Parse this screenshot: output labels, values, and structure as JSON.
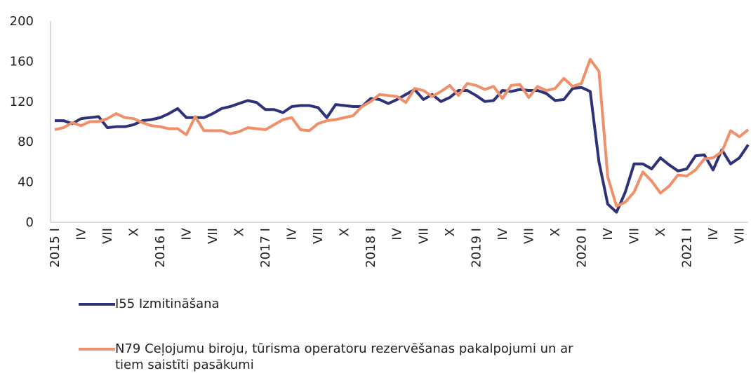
{
  "chart_data": {
    "type": "line",
    "categories": [
      "2015 I",
      null,
      null,
      "IV",
      null,
      null,
      "VII",
      null,
      null,
      "X",
      null,
      null,
      "2016 I",
      null,
      null,
      "IV",
      null,
      null,
      "VII",
      null,
      null,
      "X",
      null,
      null,
      "2017 I",
      null,
      null,
      "IV",
      null,
      null,
      "VII",
      null,
      null,
      "X",
      null,
      null,
      "2018 I",
      null,
      null,
      "IV",
      null,
      null,
      "VII",
      null,
      null,
      "X",
      null,
      null,
      "2019 I",
      null,
      null,
      "IV",
      null,
      null,
      "VII",
      null,
      null,
      "X",
      null,
      null,
      "2020 I",
      null,
      null,
      "IV",
      null,
      null,
      "VII",
      null,
      null,
      "X",
      null,
      null,
      "2021 I",
      null,
      null,
      "IV",
      null,
      null,
      "VII",
      null
    ],
    "series": [
      {
        "name": "I55 Izmitināšana",
        "color": "#2e3278",
        "values": [
          101,
          101,
          98,
          103,
          104,
          105,
          94,
          95,
          95,
          97,
          101,
          102,
          104,
          108,
          113,
          104,
          104,
          104,
          108,
          113,
          115,
          118,
          121,
          119,
          112,
          112,
          109,
          115,
          116,
          116,
          114,
          104,
          117,
          116,
          115,
          115,
          123,
          122,
          118,
          122,
          127,
          132,
          122,
          127,
          120,
          124,
          131,
          131,
          126,
          120,
          121,
          131,
          130,
          132,
          131,
          131,
          128,
          121,
          122,
          133,
          134,
          130,
          60,
          18,
          10,
          30,
          58,
          58,
          53,
          64,
          57,
          51,
          53,
          66,
          67,
          52,
          72,
          58,
          64,
          77
        ]
      },
      {
        "name": "N79 Ceļojumu biroju, tūrisma operatoru rezervēšanas pakalpojumi un ar tiem saistīti pasākumi",
        "color": "#f0906a",
        "values": [
          92,
          94,
          99,
          96,
          100,
          100,
          103,
          108,
          104,
          103,
          99,
          96,
          95,
          93,
          93,
          87,
          105,
          91,
          91,
          91,
          88,
          90,
          94,
          93,
          92,
          97,
          102,
          104,
          92,
          91,
          98,
          101,
          102,
          104,
          106,
          115,
          120,
          127,
          126,
          125,
          119,
          133,
          131,
          125,
          130,
          136,
          126,
          138,
          136,
          132,
          135,
          123,
          136,
          137,
          124,
          135,
          131,
          133,
          143,
          135,
          138,
          162,
          150,
          45,
          16,
          20,
          30,
          50,
          41,
          29,
          36,
          47,
          46,
          52,
          63,
          64,
          70,
          91,
          85,
          92
        ]
      }
    ],
    "ylim": [
      0,
      200
    ],
    "yticks": [
      0,
      40,
      80,
      120,
      160,
      200
    ],
    "grid": false
  }
}
